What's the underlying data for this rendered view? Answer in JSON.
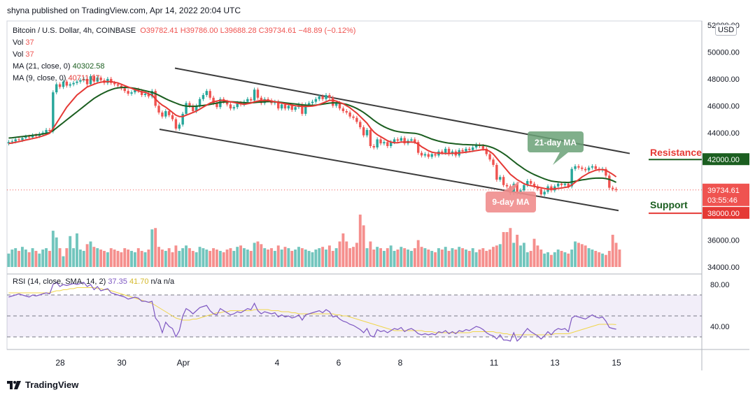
{
  "header": {
    "publisher": "shyna published on TradingView.com, Apr 14, 2022 20:04 UTC"
  },
  "legend": {
    "symbol": "Bitcoin / U.S. Dollar, 4h, COINBASE",
    "ohlc": "O39782.41 H39786.00 L39688.28 C39734.61 −48.89 (−0.12%)",
    "vol1_label": "Vol",
    "vol1_value": "37",
    "vol2_label": "Vol",
    "vol2_value": "37",
    "ma21_label": "MA (21, close, 0)",
    "ma21_value": "40302.58",
    "ma9_label": "MA (9, close, 0)",
    "ma9_value": "40711.07"
  },
  "rsi_legend": {
    "label": "RSI (14, close, SMA, 14, 2)",
    "rsi_value": "37.35",
    "sma_value": "41.70",
    "na": "n/a n/a"
  },
  "currency": "USD",
  "footer": {
    "brand": "TradingView"
  },
  "annotations": {
    "ma21": "21-day MA",
    "ma9": "9-day MA",
    "resistance": "Resistance",
    "support": "Support"
  },
  "price_tags": {
    "resistance": "42000.00",
    "last": "39734.61",
    "countdown": "03:55:46",
    "support": "38000.00"
  },
  "chart_data": {
    "type": "candlestick",
    "price_axis": [
      "52000.00",
      "50000.00",
      "48000.00",
      "46000.00",
      "44000.00",
      "42000.00",
      "36000.00",
      "34000.00"
    ],
    "price_range": [
      34000,
      52000
    ],
    "rsi_axis": [
      "80.00",
      "40.00"
    ],
    "rsi_range": [
      20,
      90
    ],
    "x_labels": [
      "28",
      "30",
      "Apr",
      "4",
      "6",
      "8",
      "11",
      "13",
      "15"
    ],
    "resistance_level": 42000,
    "support_level": 38000,
    "last_price": 39734.61,
    "closes": [
      43300,
      43350,
      43500,
      43450,
      43600,
      43700,
      43650,
      43800,
      43750,
      43900,
      44000,
      44200,
      44100,
      47000,
      47600,
      47400,
      47800,
      47500,
      47600,
      47700,
      47800,
      47900,
      48000,
      47600,
      48200,
      47800,
      48100,
      47900,
      47700,
      48000,
      47700,
      47600,
      47500,
      47300,
      47100,
      46900,
      47000,
      47200,
      47100,
      46800,
      46900,
      46700,
      47100,
      46000,
      45500,
      45200,
      45600,
      45300,
      45000,
      44300,
      44600,
      45400,
      46200,
      46000,
      45600,
      46000,
      46500,
      46800,
      47100,
      46600,
      46200,
      45900,
      46500,
      46300,
      46100,
      45800,
      45900,
      46200,
      46100,
      46300,
      46500,
      46400,
      47200,
      46600,
      46200,
      46500,
      46400,
      46200,
      46300,
      45800,
      46100,
      45800,
      46000,
      45700,
      45900,
      46100,
      45400,
      46100,
      46200,
      46300,
      46500,
      46700,
      46500,
      46800,
      46600,
      46000,
      46200,
      45800,
      45600,
      45500,
      45200,
      45100,
      44800,
      44400,
      43800,
      44200,
      43000,
      42900,
      43500,
      43200,
      43300,
      43000,
      43300,
      43500,
      43400,
      43600,
      43200,
      43400,
      43500,
      43300,
      42500,
      42300,
      42400,
      42200,
      42400,
      42300,
      42600,
      42500,
      42800,
      42400,
      42600,
      42300,
      42700,
      42600,
      42800,
      42700,
      42900,
      43100,
      43000,
      42800,
      42400,
      42000,
      41600,
      40500,
      40700,
      40100,
      40000,
      39500,
      40200,
      39500,
      39700,
      40100,
      40400,
      40200,
      40000,
      39800,
      39400,
      39600,
      40000,
      39700,
      40000,
      40200,
      40100,
      40200,
      40000,
      41300,
      41500,
      41400,
      41300,
      41200,
      41400,
      41500,
      41300,
      41200,
      41300,
      40800,
      39900,
      39800,
      39734.61
    ],
    "ma9": [
      43200,
      43230,
      43280,
      43330,
      43390,
      43450,
      43500,
      43560,
      43610,
      43680,
      43760,
      43850,
      43950,
      44300,
      44700,
      45100,
      45500,
      45900,
      46200,
      46500,
      46800,
      47000,
      47200,
      47400,
      47500,
      47600,
      47700,
      47750,
      47800,
      47800,
      47800,
      47750,
      47700,
      47600,
      47500,
      47400,
      47300,
      47200,
      47100,
      47050,
      47000,
      46900,
      46800,
      46500,
      46250,
      46050,
      45900,
      45700,
      45500,
      45300,
      45200,
      45200,
      45300,
      45400,
      45500,
      45600,
      45750,
      45900,
      46050,
      46200,
      46300,
      46350,
      46400,
      46400,
      46350,
      46300,
      46250,
      46200,
      46150,
      46100,
      46150,
      46200,
      46300,
      46350,
      46400,
      46400,
      46400,
      46350,
      46300,
      46250,
      46200,
      46150,
      46100,
      46050,
      46000,
      45980,
      45960,
      45950,
      45960,
      45980,
      46020,
      46100,
      46200,
      46300,
      46400,
      46400,
      46350,
      46250,
      46150,
      46000,
      45850,
      45650,
      45450,
      45200,
      44950,
      44700,
      44350,
      44050,
      43850,
      43700,
      43550,
      43400,
      43300,
      43250,
      43250,
      43300,
      43300,
      43300,
      43300,
      43280,
      43150,
      42950,
      42800,
      42650,
      42550,
      42500,
      42480,
      42460,
      42450,
      42450,
      42460,
      42470,
      42490,
      42510,
      42540,
      42580,
      42620,
      42660,
      42700,
      42740,
      42720,
      42600,
      42400,
      42100,
      41800,
      41500,
      41200,
      40900,
      40700,
      40500,
      40350,
      40200,
      40100,
      40050,
      40000,
      39950,
      39900,
      39850,
      39800,
      39800,
      39820,
      39850,
      39880,
      39920,
      39960,
      40100,
      40300,
      40500,
      40700,
      40850,
      41000,
      41100,
      41200,
      41250,
      41250,
      41200,
      41050,
      40900,
      40711
    ],
    "ma21": [
      43600,
      43620,
      43650,
      43680,
      43710,
      43740,
      43770,
      43800,
      43830,
      43860,
      43900,
      43950,
      44000,
      44150,
      44350,
      44550,
      44750,
      44950,
      45150,
      45350,
      45550,
      45750,
      45950,
      46150,
      46350,
      46550,
      46700,
      46850,
      46980,
      47100,
      47200,
      47280,
      47330,
      47360,
      47370,
      47360,
      47330,
      47290,
      47240,
      47180,
      47120,
      47060,
      47000,
      46900,
      46780,
      46650,
      46520,
      46400,
      46300,
      46200,
      46100,
      46020,
      45980,
      45960,
      45960,
      45970,
      45990,
      46020,
      46060,
      46100,
      46150,
      46200,
      46250,
      46280,
      46300,
      46300,
      46290,
      46270,
      46250,
      46230,
      46220,
      46220,
      46240,
      46260,
      46280,
      46300,
      46310,
      46310,
      46300,
      46280,
      46250,
      46220,
      46190,
      46160,
      46130,
      46100,
      46070,
      46050,
      46040,
      46040,
      46050,
      46080,
      46120,
      46160,
      46200,
      46220,
      46220,
      46200,
      46160,
      46100,
      46020,
      45920,
      45800,
      45660,
      45500,
      45320,
      45120,
      44920,
      44740,
      44580,
      44440,
      44320,
      44220,
      44140,
      44080,
      44040,
      44010,
      43990,
      43970,
      43950,
      43900,
      43820,
      43720,
      43620,
      43520,
      43440,
      43370,
      43310,
      43260,
      43220,
      43190,
      43160,
      43140,
      43120,
      43110,
      43100,
      43090,
      43080,
      43070,
      43060,
      43020,
      42950,
      42860,
      42740,
      42600,
      42440,
      42260,
      42060,
      41860,
      41660,
      41480,
      41300,
      41140,
      41000,
      40880,
      40770,
      40660,
      40560,
      40470,
      40400,
      40360,
      40330,
      40310,
      40300,
      40290,
      40330,
      40380,
      40430,
      40480,
      40520,
      40560,
      40590,
      40610,
      40620,
      40610,
      40580,
      40520,
      40420,
      40302
    ],
    "volumes": [
      35000,
      35300,
      35400,
      35200,
      35500,
      35300,
      35100,
      35400,
      35200,
      35000,
      35300,
      35400,
      35200,
      36700,
      36200,
      35400,
      34800,
      35400,
      36300,
      35400,
      36500,
      35300,
      35200,
      35700,
      35900,
      35500,
      35400,
      35300,
      35200,
      35100,
      35400,
      35300,
      35200,
      35100,
      35400,
      35300,
      35200,
      35100,
      35400,
      35200,
      35100,
      35300,
      36800,
      36900,
      35500,
      35300,
      35200,
      35400,
      35100,
      35600,
      35200,
      35400,
      35600,
      35400,
      35200,
      35100,
      35500,
      35400,
      35300,
      35200,
      35400,
      35300,
      35200,
      35100,
      35300,
      35400,
      35200,
      35500,
      35600,
      35400,
      35300,
      35200,
      35800,
      35900,
      35700,
      35400,
      35300,
      35400,
      35200,
      35600,
      35300,
      35500,
      35400,
      35200,
      35300,
      35500,
      35400,
      35300,
      35200,
      35100,
      35300,
      35400,
      35500,
      35300,
      35600,
      35200,
      35400,
      35900,
      36500,
      35900,
      35400,
      35500,
      35800,
      37900,
      37100,
      35400,
      35900,
      35300,
      35500,
      35400,
      35200,
      35400,
      35600,
      35200,
      35300,
      35500,
      35400,
      35300,
      35200,
      35400,
      36000,
      35500,
      35400,
      35300,
      35200,
      35100,
      35400,
      35300,
      35500,
      35200,
      35400,
      35300,
      35500,
      35400,
      35300,
      35200,
      35400,
      35100,
      35300,
      35400,
      35200,
      35300,
      35500,
      35600,
      35700,
      36600,
      36600,
      36900,
      35800,
      36400,
      35600,
      35800,
      35100,
      35200,
      36100,
      35600,
      35300,
      35000,
      35100,
      34900,
      35100,
      35300,
      35200,
      35100,
      35000,
      35300,
      35900,
      35800,
      35700,
      35600,
      35400,
      35300,
      35200,
      35100,
      35000,
      34900,
      35200,
      36400,
      35800,
      35300
    ],
    "rsi": [
      68,
      69,
      70,
      71,
      70,
      69,
      68,
      70,
      69,
      70,
      71,
      72,
      71,
      80,
      82,
      78,
      80,
      79,
      80,
      81,
      80,
      81,
      82,
      78,
      80,
      75,
      78,
      74,
      75,
      76,
      72,
      71,
      70,
      69,
      68,
      66,
      67,
      68,
      67,
      64,
      64,
      63,
      64,
      48,
      44,
      34,
      44,
      40,
      38,
      30,
      36,
      50,
      57,
      55,
      52,
      55,
      58,
      59,
      60,
      55,
      52,
      51,
      57,
      55,
      53,
      51,
      52,
      54,
      53,
      55,
      57,
      56,
      62,
      55,
      52,
      54,
      53,
      52,
      53,
      49,
      51,
      49,
      50,
      48,
      49,
      51,
      46,
      51,
      52,
      53,
      54,
      55,
      53,
      56,
      54,
      49,
      50,
      47,
      45,
      44,
      42,
      41,
      39,
      37,
      34,
      38,
      31,
      30,
      37,
      35,
      36,
      34,
      36,
      38,
      37,
      39,
      35,
      37,
      38,
      36,
      33,
      32,
      33,
      32,
      33,
      32,
      35,
      34,
      36,
      33,
      35,
      33,
      36,
      35,
      37,
      36,
      38,
      40,
      39,
      37,
      34,
      32,
      31,
      28,
      32,
      27,
      27,
      26,
      34,
      26,
      29,
      34,
      38,
      35,
      33,
      31,
      28,
      31,
      35,
      32,
      36,
      38,
      37,
      38,
      35,
      48,
      50,
      49,
      48,
      47,
      49,
      51,
      49,
      48,
      49,
      45,
      39,
      38,
      37.35
    ],
    "rsi_sma": [
      72,
      72,
      72,
      72,
      72,
      72,
      72,
      72,
      72,
      72,
      72,
      72,
      72,
      73,
      74,
      74,
      75,
      75,
      76,
      76,
      77,
      77,
      77,
      77,
      77,
      77,
      76,
      76,
      75,
      75,
      74,
      73,
      72,
      71,
      70,
      69,
      68,
      67,
      66,
      65,
      64,
      63,
      62,
      60,
      58,
      56,
      54,
      52,
      50,
      48,
      47,
      46,
      46,
      46,
      47,
      47,
      48,
      49,
      50,
      51,
      52,
      53,
      53,
      54,
      54,
      55,
      55,
      55,
      55,
      55,
      55,
      55,
      56,
      56,
      56,
      56,
      56,
      55,
      55,
      55,
      54,
      54,
      54,
      53,
      53,
      52,
      52,
      52,
      52,
      52,
      52,
      52,
      52,
      52,
      52,
      52,
      51,
      51,
      50,
      50,
      49,
      48,
      47,
      46,
      45,
      44,
      43,
      42,
      41,
      40,
      39,
      38,
      37,
      36,
      36,
      36,
      36,
      36,
      36,
      36,
      36,
      36,
      35,
      35,
      35,
      34,
      34,
      34,
      34,
      34,
      34,
      34,
      34,
      34,
      34,
      34,
      35,
      35,
      35,
      35,
      35,
      35,
      35,
      34,
      34,
      33,
      33,
      32,
      32,
      32,
      32,
      32,
      32,
      32,
      32,
      32,
      32,
      32,
      32,
      32,
      33,
      33,
      33,
      33,
      33,
      34,
      35,
      36,
      37,
      38,
      39,
      40,
      41,
      42,
      42,
      42,
      42,
      42,
      41.7
    ]
  }
}
